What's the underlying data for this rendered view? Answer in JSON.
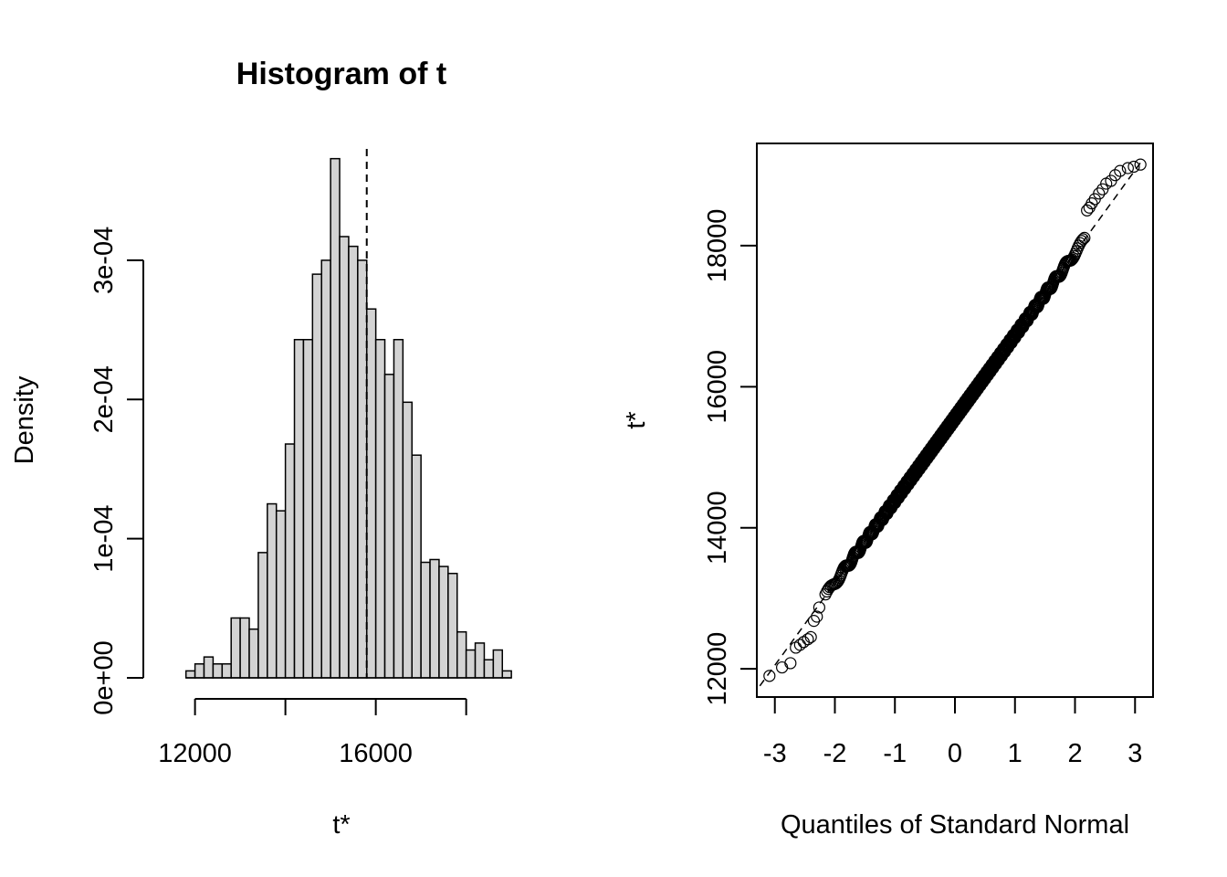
{
  "chart_data": [
    {
      "type": "bar",
      "title": "Histogram of t",
      "xlabel": "t*",
      "ylabel": "Density",
      "x_ticks": [
        12000,
        16000
      ],
      "x_tick_labels": [
        "12000",
        "16000"
      ],
      "y_ticks": [
        0,
        0.0001,
        0.0002,
        0.0003
      ],
      "y_tick_labels": [
        "0e+00",
        "1e-04",
        "2e-04",
        "3e-04"
      ],
      "xlim": [
        11200,
        19300
      ],
      "ylim": [
        0,
        0.00038
      ],
      "bin_width": 200,
      "bin_start": 11800,
      "values": [
        5e-06,
        1e-05,
        1.5e-05,
        1e-05,
        1e-05,
        4.3e-05,
        4.3e-05,
        3.5e-05,
        9e-05,
        0.000125,
        0.00012,
        0.000168,
        0.000243,
        0.000243,
        0.00029,
        0.0003,
        0.000373,
        0.000317,
        0.00031,
        0.0003,
        0.000265,
        0.000243,
        0.000218,
        0.000243,
        0.000198,
        0.00016,
        8.3e-05,
        8.5e-05,
        8e-05,
        7.5e-05,
        3.3e-05,
        2e-05,
        2.5e-05,
        1.3e-05,
        2e-05,
        5e-06
      ],
      "reference_line": 15800,
      "fill_color": "#d3d3d3"
    },
    {
      "type": "scatter",
      "title": "",
      "xlabel": "Quantiles of Standard Normal",
      "ylabel": "t*",
      "x_ticks": [
        -3,
        -2,
        -1,
        0,
        1,
        2,
        3
      ],
      "x_tick_labels": [
        "-3",
        "-2",
        "-1",
        "0",
        "1",
        "2",
        "3"
      ],
      "y_ticks": [
        12000,
        14000,
        16000,
        18000
      ],
      "y_tick_labels": [
        "12000",
        "14000",
        "16000",
        "18000"
      ],
      "xlim": [
        -3.3,
        3.3
      ],
      "ylim": [
        11600,
        19450
      ],
      "mean": 15560,
      "sd": 1170,
      "n_points": 1000,
      "ref_line": {
        "intercept": 15560,
        "slope": 1170
      },
      "outliers": [
        [
          -3.09,
          11900
        ],
        [
          -2.88,
          12020
        ],
        [
          -2.74,
          12080
        ],
        [
          -2.65,
          12300
        ],
        [
          -2.58,
          12340
        ],
        [
          -2.52,
          12380
        ],
        [
          -2.45,
          12420
        ],
        [
          -2.4,
          12450
        ],
        [
          -2.35,
          12680
        ],
        [
          -2.3,
          12740
        ],
        [
          -2.26,
          12870
        ],
        [
          2.2,
          18500
        ],
        [
          2.24,
          18540
        ],
        [
          2.28,
          18600
        ],
        [
          2.33,
          18660
        ],
        [
          2.4,
          18740
        ],
        [
          2.46,
          18800
        ],
        [
          2.52,
          18880
        ],
        [
          2.6,
          18920
        ],
        [
          2.67,
          19000
        ],
        [
          2.75,
          19060
        ],
        [
          2.88,
          19100
        ],
        [
          2.98,
          19120
        ],
        [
          3.09,
          19150
        ]
      ]
    }
  ]
}
